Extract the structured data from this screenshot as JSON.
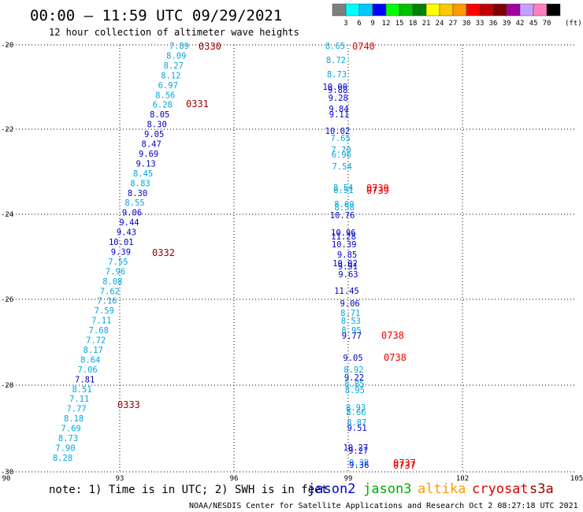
{
  "header": {
    "title": "00:00 – 11:59 UTC 09/29/2021",
    "subtitle": "12 hour collection of altimeter wave heights"
  },
  "legend": {
    "ticks": [
      "3",
      "6",
      "9",
      "12",
      "15",
      "18",
      "21",
      "24",
      "27",
      "30",
      "33",
      "36",
      "39",
      "42",
      "45",
      "70"
    ],
    "unit": "(ft)",
    "colors": [
      "#7f7f7f",
      "#00ffff",
      "#00c8ff",
      "#0000ff",
      "#00ff00",
      "#00c000",
      "#008000",
      "#ffff00",
      "#ffc800",
      "#ff9900",
      "#ff0000",
      "#c00000",
      "#800000",
      "#a000a0",
      "#c8a0ff",
      "#ff80c0",
      "#000000"
    ]
  },
  "axes": {
    "lon_ticks": [
      "90",
      "93",
      "96",
      "99",
      "102",
      "105"
    ],
    "lat_ticks": [
      "-20",
      "-22",
      "-24",
      "-26",
      "-28",
      "-30"
    ]
  },
  "note": "note: 1) Time is in UTC; 2) SWH is in feet",
  "satellites": [
    {
      "name": "jason2",
      "color": "#0000dd"
    },
    {
      "name": "jason3",
      "color": "#00aa00"
    },
    {
      "name": "altika",
      "color": "#ff9900"
    },
    {
      "name": "cryosat",
      "color": "#dd0000"
    },
    {
      "name": "s3a",
      "color": "#990000"
    }
  ],
  "footer": "NOAA/NESDIS Center for Satellite Applications and Research   Oct  2 08:27:18 UTC 2021",
  "track_a": {
    "values": [
      "7.89",
      "8.09",
      "8.27",
      "8.12",
      "6.97",
      "8.56",
      "6.28",
      "8.05",
      "8.30",
      "9.05",
      "8.47",
      "9.69",
      "9.13",
      "8.45",
      "8.83",
      "8.30",
      "8.55",
      "9.06",
      "9.44",
      "9.43",
      "10.01",
      "9.39",
      "7.55",
      "7.96",
      "8.08",
      "7.62",
      "7.16",
      "7.59",
      "7.11",
      "7.68",
      "7.72",
      "8.17",
      "8.64",
      "7.06",
      "7.81",
      "8.51",
      "7.11",
      "7.77",
      "8.18",
      "7.69",
      "8.73",
      "7.90",
      "8.28"
    ],
    "times": [
      "0330",
      "0331",
      "0332",
      "0333"
    ]
  },
  "track_b": {
    "values": [
      "8.65",
      "8.72",
      "8.73",
      "10.00",
      "9.88",
      "9.28",
      "9.84",
      "9.11",
      "10.02",
      "7.65",
      "7.70",
      "6.96",
      "7.54",
      "8.54",
      "8.51",
      "8.69",
      "8.58",
      "10.76",
      "10.96",
      "11.28",
      "10.39",
      "9.85",
      "10.02",
      "9.91",
      "9.63",
      "11.45",
      "9.06",
      "8.71",
      "8.53",
      "8.95",
      "9.77",
      "9.05",
      "8.92",
      "9.22",
      "8.85",
      "8.95",
      "8.93",
      "8.66",
      "8.87",
      "9.51",
      "10.27",
      "9.27",
      "9.39",
      "9.36"
    ],
    "times": [
      "0740",
      "0739",
      "0739",
      "0738",
      "0738",
      "0737",
      "0737"
    ]
  },
  "chart_data": {
    "type": "scatter",
    "title": "00:00 – 11:59 UTC 09/29/2021",
    "subtitle": "12 hour collection of altimeter wave heights",
    "xlim": [
      90,
      105
    ],
    "ylim": [
      -30,
      -20
    ],
    "grid": true,
    "series": [
      {
        "name": "s3a",
        "color": "#990000",
        "points": [
          [
            94.5,
            -20.0,
            7.89
          ],
          [
            94.4,
            -20.12,
            8.09
          ],
          [
            94.35,
            -20.26,
            8.27
          ],
          [
            94.3,
            -20.4,
            8.12
          ],
          [
            94.2,
            -20.54,
            6.97
          ],
          [
            94.15,
            -20.68,
            8.56
          ],
          [
            94.05,
            -20.82,
            6.28
          ],
          [
            94.0,
            -20.96,
            8.05
          ],
          [
            93.95,
            -21.1,
            8.3
          ],
          [
            93.85,
            -21.24,
            9.05
          ],
          [
            93.8,
            -21.38,
            8.47
          ],
          [
            93.75,
            -21.52,
            9.69
          ],
          [
            93.65,
            -21.66,
            9.13
          ],
          [
            93.6,
            -21.8,
            8.45
          ],
          [
            93.55,
            -21.94,
            8.83
          ],
          [
            93.5,
            -22.08,
            8.3
          ],
          [
            93.45,
            -22.22,
            8.55
          ],
          [
            93.35,
            -22.36,
            9.06
          ],
          [
            93.3,
            -22.5,
            9.44
          ],
          [
            93.25,
            -22.64,
            9.43
          ],
          [
            93.15,
            -22.78,
            10.01
          ],
          [
            93.1,
            -22.92,
            9.39
          ],
          [
            93.05,
            -23.06,
            7.55
          ],
          [
            93.0,
            -23.2,
            7.96
          ],
          [
            92.9,
            -23.34,
            8.08
          ],
          [
            92.85,
            -23.48,
            7.62
          ],
          [
            92.8,
            -23.62,
            7.16
          ],
          [
            92.75,
            -23.76,
            7.59
          ],
          [
            92.65,
            -23.9,
            7.11
          ],
          [
            92.6,
            -24.04,
            7.68
          ],
          [
            92.55,
            -24.18,
            7.72
          ],
          [
            92.45,
            -24.32,
            8.17
          ],
          [
            92.4,
            -24.46,
            8.64
          ],
          [
            92.35,
            -24.6,
            7.06
          ],
          [
            92.3,
            -24.74,
            7.81
          ],
          [
            92.2,
            -24.88,
            8.51
          ],
          [
            92.15,
            -25.02,
            7.11
          ],
          [
            92.1,
            -25.16,
            7.77
          ],
          [
            92.0,
            -25.3,
            8.18
          ],
          [
            91.95,
            -25.44,
            7.69
          ],
          [
            91.9,
            -25.58,
            8.73
          ],
          [
            91.85,
            -25.72,
            7.9
          ],
          [
            91.75,
            -25.86,
            8.28
          ]
        ]
      },
      {
        "name": "cryosat",
        "color": "#dd0000",
        "points": [
          [
            98.9,
            -20.0,
            8.65
          ],
          [
            98.9,
            -20.15,
            8.72
          ],
          [
            98.92,
            -20.3,
            8.73
          ],
          [
            98.92,
            -20.44,
            10.0
          ],
          [
            98.93,
            -20.5,
            9.88
          ],
          [
            98.93,
            -20.6,
            9.28
          ],
          [
            98.94,
            -20.73,
            9.84
          ],
          [
            98.94,
            -20.8,
            9.11
          ],
          [
            98.95,
            -20.97,
            10.02
          ],
          [
            98.95,
            -21.07,
            7.65
          ],
          [
            98.96,
            -21.2,
            7.7
          ],
          [
            98.96,
            -21.27,
            6.96
          ],
          [
            98.97,
            -21.42,
            7.54
          ],
          [
            98.98,
            -21.64,
            8.54
          ],
          [
            98.98,
            -21.68,
            8.51
          ],
          [
            98.99,
            -21.85,
            8.69
          ],
          [
            98.99,
            -21.89,
            8.58
          ],
          [
            99.0,
            -22.0,
            10.76
          ],
          [
            99.0,
            -22.23,
            10.96
          ],
          [
            99.01,
            -22.29,
            11.28
          ],
          [
            99.01,
            -22.4,
            10.39
          ],
          [
            99.02,
            -22.53,
            9.85
          ],
          [
            99.02,
            -22.66,
            10.02
          ],
          [
            99.03,
            -22.71,
            9.91
          ],
          [
            99.03,
            -22.79,
            9.63
          ],
          [
            99.04,
            -23.0,
            11.45
          ],
          [
            99.05,
            -23.14,
            9.06
          ],
          [
            99.06,
            -23.28,
            8.71
          ],
          [
            99.06,
            -23.37,
            8.53
          ],
          [
            99.07,
            -23.48,
            8.95
          ],
          [
            99.07,
            -23.55,
            9.77
          ],
          [
            99.1,
            -23.8,
            9.05
          ],
          [
            99.12,
            -23.94,
            8.92
          ],
          [
            99.13,
            -24.04,
            9.22
          ],
          [
            99.14,
            -24.13,
            8.85
          ],
          [
            99.15,
            -24.2,
            8.95
          ],
          [
            99.17,
            -24.45,
            8.93
          ],
          [
            99.18,
            -24.53,
            8.66
          ],
          [
            99.19,
            -24.67,
            8.87
          ],
          [
            99.2,
            -24.74,
            9.51
          ],
          [
            99.22,
            -25.07,
            10.27
          ],
          [
            99.23,
            -25.12,
            9.27
          ],
          [
            99.25,
            -25.3,
            9.39
          ],
          [
            99.25,
            -25.34,
            9.36
          ]
        ]
      }
    ]
  }
}
